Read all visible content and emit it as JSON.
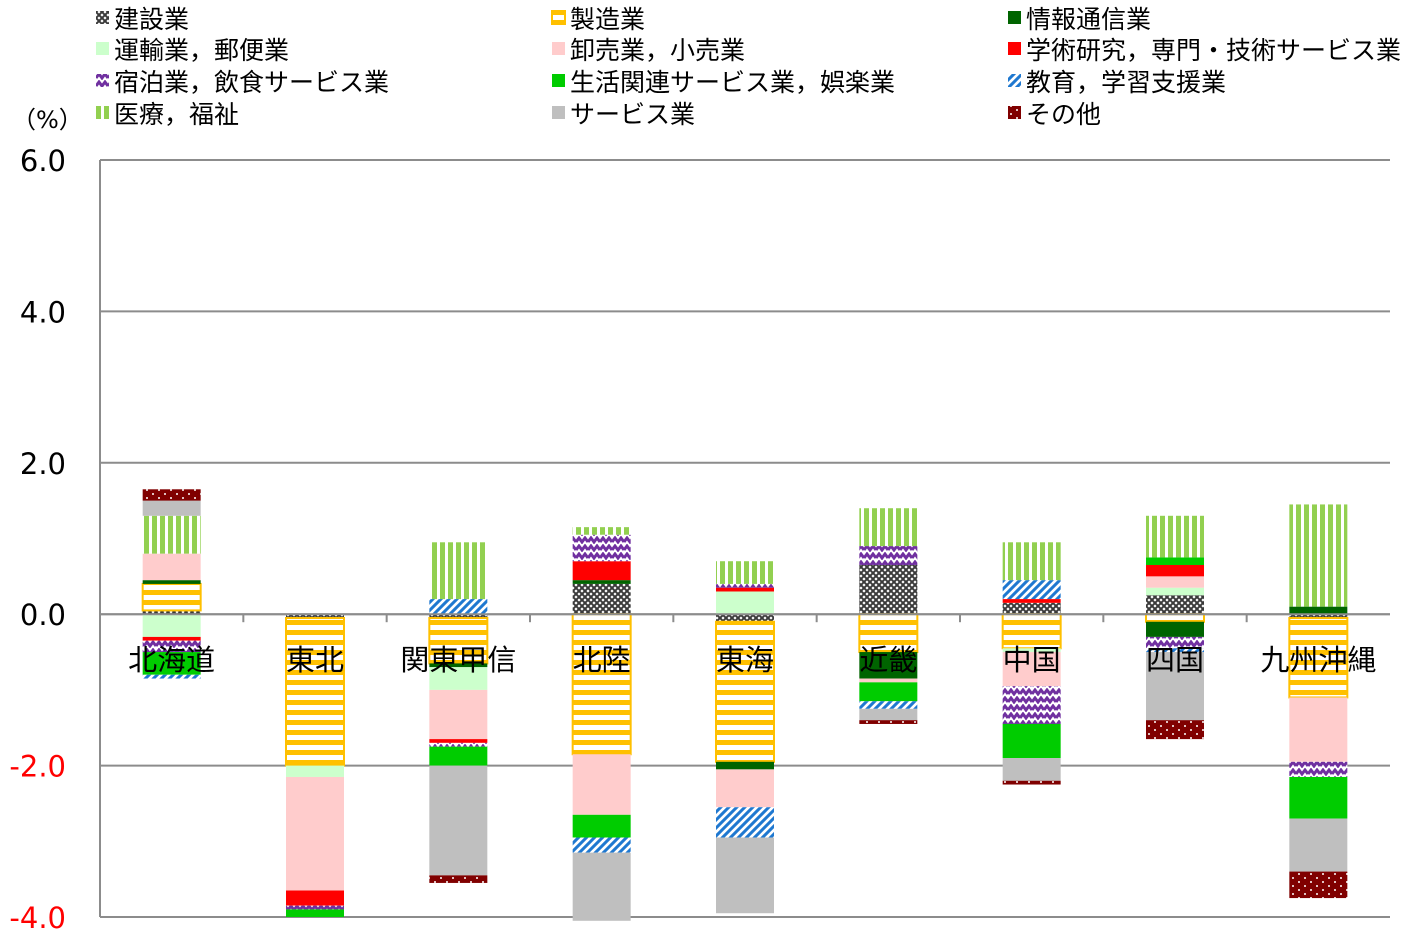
{
  "chart_data": {
    "type": "bar",
    "stacked": true,
    "ylabel": "（%）",
    "ylim": [
      -4.0,
      6.0
    ],
    "yticks": [
      6.0,
      4.0,
      2.0,
      0.0,
      -2.0,
      -4.0
    ],
    "ytick_labels": [
      "6.0",
      "4.0",
      "2.0",
      "0.0",
      "-2.0",
      "-4.0"
    ],
    "negative_tick_color": "#ff0000",
    "grid": true,
    "legend_position": "top",
    "categories": [
      "北海道",
      "東北",
      "関東甲信",
      "北陸",
      "東海",
      "近畿",
      "中国",
      "四国",
      "九州沖縄"
    ],
    "series": [
      {
        "name": "建設業",
        "color": "#3a3a3a",
        "pattern": "crosshatch",
        "values": [
          0.05,
          -0.05,
          -0.05,
          0.4,
          -0.1,
          0.65,
          0.15,
          0.25,
          -0.05
        ]
      },
      {
        "name": "製造業",
        "color": "#ffc000",
        "pattern": "hstripe",
        "values": [
          0.35,
          -1.95,
          -0.6,
          -1.85,
          -1.85,
          -0.5,
          -0.45,
          -0.1,
          -1.05
        ]
      },
      {
        "name": "情報通信業",
        "color": "#006400",
        "pattern": "solid",
        "values": [
          0.05,
          0.0,
          -0.05,
          0.05,
          -0.1,
          -0.35,
          0.0,
          -0.2,
          0.1
        ]
      },
      {
        "name": "運輸業，郵便業",
        "color": "#ccffcc",
        "pattern": "solid",
        "values": [
          -0.3,
          -0.15,
          -0.3,
          0.0,
          0.3,
          0.0,
          -0.05,
          0.1,
          0.0
        ]
      },
      {
        "name": "卸売業，小売業",
        "color": "#ffcccc",
        "pattern": "solid",
        "values": [
          0.35,
          -1.5,
          -0.65,
          -0.8,
          -0.5,
          -0.05,
          -0.45,
          0.15,
          -0.85
        ]
      },
      {
        "name": "学術研究，専門・技術サービス業",
        "color": "#ff0000",
        "pattern": "solid",
        "values": [
          -0.05,
          -0.2,
          -0.05,
          0.25,
          0.05,
          0.0,
          0.05,
          0.15,
          0.0
        ]
      },
      {
        "name": "宿泊業，飲食サービス業",
        "color": "#7030a0",
        "pattern": "zigzag",
        "values": [
          -0.15,
          -0.05,
          -0.05,
          0.35,
          0.05,
          0.25,
          -0.5,
          -0.15,
          -0.2
        ]
      },
      {
        "name": "生活関連サービス業，娯楽業",
        "color": "#00cc00",
        "pattern": "solid",
        "values": [
          -0.3,
          -0.1,
          -0.25,
          -0.3,
          0.0,
          -0.25,
          -0.45,
          0.1,
          -0.55
        ]
      },
      {
        "name": "教育，学習支援業",
        "color": "#1f78d0",
        "pattern": "diagonal",
        "values": [
          -0.05,
          0.0,
          0.2,
          -0.2,
          -0.4,
          -0.1,
          0.25,
          -0.05,
          0.0
        ]
      },
      {
        "name": "医療，福祉",
        "color": "#92d050",
        "pattern": "vstripe",
        "values": [
          0.5,
          0.0,
          0.75,
          0.1,
          0.3,
          0.5,
          0.5,
          0.55,
          1.35
        ]
      },
      {
        "name": "サービス業",
        "color": "#bfbfbf",
        "pattern": "solid",
        "values": [
          0.2,
          0.0,
          -1.45,
          -0.9,
          -1.0,
          -0.15,
          -0.3,
          -0.9,
          -0.7
        ]
      },
      {
        "name": "その他",
        "color": "#800000",
        "pattern": "dots",
        "values": [
          0.15,
          0.0,
          -0.1,
          0.0,
          0.0,
          -0.05,
          -0.05,
          -0.25,
          -0.35
        ]
      }
    ]
  }
}
